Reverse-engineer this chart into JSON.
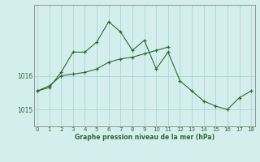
{
  "line1_x": [
    0,
    1,
    2,
    3,
    4,
    5,
    6,
    7,
    8,
    9,
    10,
    11,
    12,
    13,
    14,
    15,
    16,
    17,
    18
  ],
  "line1_y": [
    1015.55,
    1015.65,
    1016.1,
    1016.7,
    1016.7,
    1017.0,
    1017.6,
    1017.3,
    1016.75,
    1017.05,
    1016.2,
    1016.7,
    1015.85,
    1015.55,
    1015.25,
    1015.1,
    1015.0,
    1015.35,
    1015.55
  ],
  "line2_x": [
    0,
    1,
    2,
    3,
    4,
    5,
    6,
    7,
    8,
    9,
    10,
    11
  ],
  "line2_y": [
    1015.55,
    1015.7,
    1016.0,
    1016.05,
    1016.1,
    1016.2,
    1016.4,
    1016.5,
    1016.55,
    1016.65,
    1016.75,
    1016.85
  ],
  "line_color": "#2d6a2d",
  "bg_color": "#d4eeee",
  "grid_color": "#aed4d4",
  "title": "Graphe pression niveau de la mer (hPa)",
  "xlabel_ticks": [
    0,
    1,
    2,
    3,
    4,
    5,
    6,
    7,
    8,
    9,
    10,
    11,
    12,
    13,
    14,
    15,
    16,
    17,
    18
  ],
  "yticks": [
    1015,
    1016
  ],
  "ylim": [
    1014.5,
    1018.1
  ],
  "xlim": [
    -0.3,
    18.3
  ]
}
